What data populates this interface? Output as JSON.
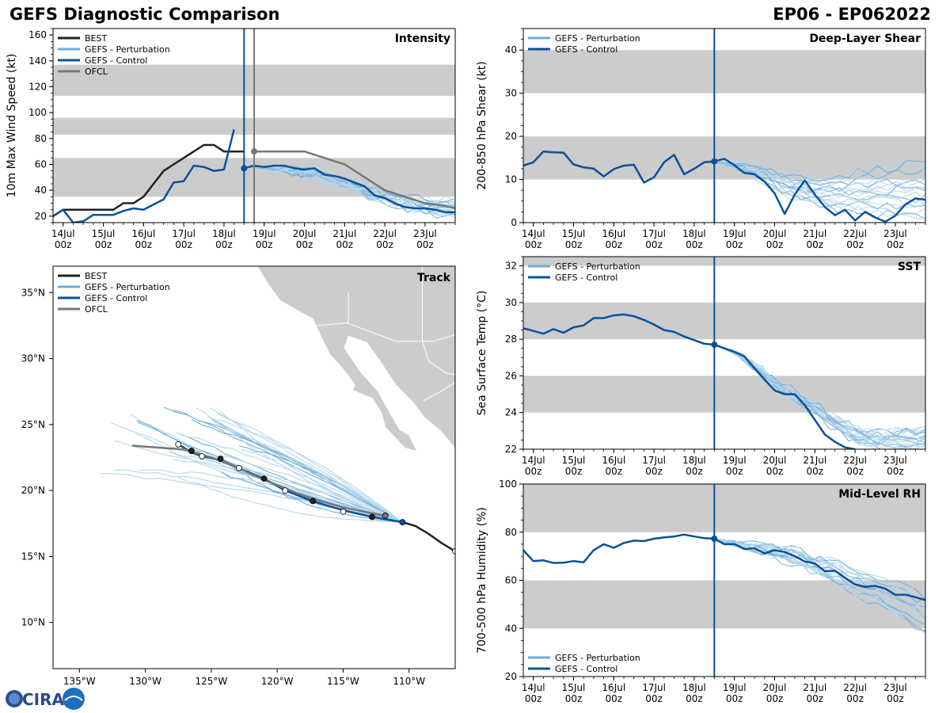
{
  "header": {
    "title": "GEFS Diagnostic Comparison",
    "storm": "EP06 - EP062022"
  },
  "colors": {
    "best": "#222222",
    "perturbation": "#6baed6",
    "perturbation_faint": "#b7d5ea",
    "control": "#08519c",
    "ofcl": "#777777",
    "band": "#cccccc",
    "land": "#cccccc"
  },
  "logo": {
    "text": "CIRA"
  },
  "time_axis": {
    "min": 13.75,
    "max": 23.75,
    "ticks": [
      {
        "v": 14,
        "day": "14Jul",
        "hour": "00z"
      },
      {
        "v": 15,
        "day": "15Jul",
        "hour": "00z"
      },
      {
        "v": 16,
        "day": "16Jul",
        "hour": "00z"
      },
      {
        "v": 17,
        "day": "17Jul",
        "hour": "00z"
      },
      {
        "v": 18,
        "day": "18Jul",
        "hour": "00z"
      },
      {
        "v": 19,
        "day": "19Jul",
        "hour": "00z"
      },
      {
        "v": 20,
        "day": "20Jul",
        "hour": "00z"
      },
      {
        "v": 21,
        "day": "21Jul",
        "hour": "00z"
      },
      {
        "v": 22,
        "day": "22Jul",
        "hour": "00z"
      },
      {
        "v": 23,
        "day": "23Jul",
        "hour": "00z"
      }
    ]
  },
  "chart_data": [
    {
      "id": "intensity",
      "type": "line",
      "title": "Intensity",
      "ylabel": "10m Max Wind Speed (kt)",
      "ylim": [
        15,
        165
      ],
      "yticks": [
        20,
        40,
        60,
        80,
        100,
        120,
        140,
        160
      ],
      "bands": [
        [
          35,
          65
        ],
        [
          83,
          96
        ],
        [
          113,
          137
        ]
      ],
      "vlines": [
        {
          "x": 18.5,
          "color": "control"
        },
        {
          "x": 18.75,
          "color": "ofcl"
        }
      ],
      "legend": [
        "BEST",
        "GEFS - Perturbation",
        "GEFS - Control",
        "OFCL"
      ],
      "series": [
        {
          "name": "BEST",
          "role": "best",
          "x": [
            13.75,
            14.0,
            14.25,
            14.5,
            14.75,
            15.0,
            15.25,
            15.5,
            15.75,
            16.0,
            16.25,
            16.5,
            16.75,
            17.0,
            17.25,
            17.5,
            17.75,
            18.0,
            18.25,
            18.5
          ],
          "y": [
            20,
            25,
            25,
            25,
            25,
            25,
            25,
            30,
            30,
            35,
            45,
            55,
            60,
            65,
            70,
            75,
            75,
            70,
            70,
            70
          ]
        },
        {
          "name": "GEFS - Control",
          "role": "control",
          "x": [
            13.75,
            14.0,
            14.25,
            14.5,
            14.75,
            15.0,
            15.25,
            15.5,
            15.75,
            16.0,
            16.25,
            16.5,
            16.75,
            17.0,
            17.25,
            17.5,
            17.75,
            18.0,
            18.25
          ],
          "y": [
            20,
            25,
            15,
            16,
            21,
            21,
            21,
            24,
            26,
            25,
            29,
            33,
            46,
            47,
            59,
            58,
            55,
            56,
            87
          ]
        },
        {
          "name": "GEFS - Control",
          "role": "control",
          "x": [
            18.5,
            18.75,
            19.0,
            19.25,
            19.5,
            19.75,
            20.0,
            20.25,
            20.5,
            20.75,
            21.0,
            21.25,
            21.5,
            21.75,
            22.0,
            22.25,
            22.5,
            22.75,
            23.0,
            23.25,
            23.5,
            23.75
          ],
          "y": [
            57,
            59,
            58,
            59,
            59,
            57,
            56,
            57,
            52,
            51,
            49,
            46,
            43,
            36,
            34,
            30,
            27,
            26,
            26,
            25,
            23,
            23
          ]
        },
        {
          "name": "OFCL",
          "role": "ofcl",
          "x": [
            18.75,
            19.0,
            19.5,
            20.0,
            20.5,
            21.0,
            21.5,
            22.0,
            22.5,
            23.0,
            23.5,
            23.75
          ],
          "y": [
            70,
            70,
            70,
            70,
            65,
            60,
            50,
            40,
            35,
            30,
            28,
            26
          ]
        }
      ],
      "ensemble": {
        "x0": 18.5,
        "x1": 23.75,
        "start": 58,
        "end_low": 20,
        "end_high": 32,
        "center": [
          58,
          57,
          55,
          52,
          47,
          40,
          34,
          29,
          26,
          25
        ],
        "members": 20
      },
      "markers": [
        {
          "x": 18.5,
          "y": 57,
          "role": "control"
        },
        {
          "x": 18.75,
          "y": 70,
          "role": "ofcl"
        }
      ]
    },
    {
      "id": "shear",
      "type": "line",
      "title": "Deep-Layer Shear",
      "ylabel": "200-850 hPa Shear (kt)",
      "ylim": [
        0,
        45
      ],
      "yticks": [
        0,
        10,
        20,
        30,
        40
      ],
      "bands": [
        [
          10,
          20
        ],
        [
          30,
          40
        ]
      ],
      "vlines": [
        {
          "x": 18.5,
          "color": "control"
        }
      ],
      "legend": [
        "GEFS - Perturbation",
        "GEFS - Control"
      ],
      "series": [
        {
          "name": "GEFS - Control",
          "role": "control",
          "x": [
            13.75,
            14.0,
            14.25,
            14.5,
            14.75,
            15.0,
            15.25,
            15.5,
            15.75,
            16.0,
            16.25,
            16.5,
            16.75,
            17.0,
            17.25,
            17.5,
            17.75,
            18.0,
            18.25,
            18.5,
            18.75,
            19.0,
            19.25,
            19.5,
            19.75,
            20.0,
            20.25,
            20.5,
            20.75,
            21.0,
            21.25,
            21.5,
            21.75,
            22.0,
            22.25,
            22.5,
            22.75,
            23.0,
            23.25,
            23.5,
            23.75
          ],
          "y": [
            13.2,
            14.0,
            16.5,
            16.3,
            16.2,
            13.5,
            12.8,
            12.5,
            10.7,
            12.4,
            13.2,
            13.4,
            9.3,
            10.5,
            14.0,
            15.7,
            11.2,
            12.5,
            14.0,
            14.2,
            14.8,
            13.3,
            11.5,
            11.2,
            9.5,
            6.8,
            2.0,
            6.5,
            9.8,
            6.5,
            3.6,
            1.7,
            3.0,
            0.5,
            2.5,
            1.2,
            0.2,
            1.6,
            4.2,
            5.6,
            5.3
          ]
        }
      ],
      "ensemble": {
        "x0": 18.5,
        "x1": 23.75,
        "start": 14,
        "end_low": 1,
        "end_high": 15,
        "center": [
          14,
          13,
          11,
          8,
          7,
          6,
          6,
          6,
          6,
          6
        ],
        "members": 20
      },
      "markers": [
        {
          "x": 18.5,
          "y": 14.2,
          "role": "control"
        }
      ]
    },
    {
      "id": "sst",
      "type": "line",
      "title": "SST",
      "ylabel": "Sea Surface Temp (°C)",
      "ylim": [
        22,
        32.5
      ],
      "yticks": [
        22,
        24,
        26,
        28,
        30,
        32
      ],
      "bands": [
        [
          24,
          26
        ],
        [
          28,
          30
        ],
        [
          32,
          32.5
        ]
      ],
      "vlines": [
        {
          "x": 18.5,
          "color": "control"
        }
      ],
      "legend": [
        "GEFS - Perturbation",
        "GEFS - Control"
      ],
      "series": [
        {
          "name": "GEFS - Control",
          "role": "control",
          "x": [
            13.75,
            14.0,
            14.25,
            14.5,
            14.75,
            15.0,
            15.25,
            15.5,
            15.75,
            16.0,
            16.25,
            16.5,
            16.75,
            17.0,
            17.25,
            17.5,
            17.75,
            18.0,
            18.25,
            18.5,
            18.75,
            19.0,
            19.25,
            19.5,
            19.75,
            20.0,
            20.25,
            20.5,
            20.75,
            21.0,
            21.25,
            21.5,
            21.75,
            22.0
          ],
          "y": [
            28.6,
            28.45,
            28.3,
            28.55,
            28.35,
            28.65,
            28.75,
            29.15,
            29.15,
            29.3,
            29.35,
            29.25,
            29.05,
            28.8,
            28.5,
            28.4,
            28.15,
            27.95,
            27.75,
            27.7,
            27.5,
            27.3,
            27.05,
            26.4,
            25.8,
            25.2,
            25.0,
            25.0,
            24.4,
            23.6,
            22.8,
            22.4,
            22.1,
            22.0
          ]
        }
      ],
      "ensemble": {
        "x0": 18.5,
        "x1": 23.75,
        "start": 27.7,
        "end_low": 22,
        "end_high": 23.2,
        "center": [
          27.7,
          27.2,
          26.2,
          25.2,
          24.5,
          23.5,
          22.7,
          22.4,
          22.4,
          22.5
        ],
        "members": 20
      },
      "markers": [
        {
          "x": 18.5,
          "y": 27.7,
          "role": "control"
        }
      ]
    },
    {
      "id": "rh",
      "type": "line",
      "title": "Mid-Level RH",
      "ylabel": "700-500 hPa Humidity (%)",
      "ylim": [
        20,
        100
      ],
      "yticks": [
        20,
        40,
        60,
        80,
        100
      ],
      "bands": [
        [
          40,
          60
        ],
        [
          80,
          100
        ]
      ],
      "vlines": [
        {
          "x": 18.5,
          "color": "control"
        }
      ],
      "legend": [
        "GEFS - Perturbation",
        "GEFS - Control"
      ],
      "series": [
        {
          "name": "GEFS - Control",
          "role": "control",
          "x": [
            13.75,
            14.0,
            14.25,
            14.5,
            14.75,
            15.0,
            15.25,
            15.5,
            15.75,
            16.0,
            16.25,
            16.5,
            16.75,
            17.0,
            17.25,
            17.5,
            17.75,
            18.0,
            18.25,
            18.5,
            18.75,
            19.0,
            19.25,
            19.5,
            19.75,
            20.0,
            20.25,
            20.5,
            20.75,
            21.0,
            21.25,
            21.5,
            21.75,
            22.0,
            22.25,
            22.5,
            22.75,
            23.0,
            23.25,
            23.5,
            23.75
          ],
          "y": [
            72.5,
            68.0,
            68.3,
            67.2,
            67.3,
            68.0,
            67.5,
            72.5,
            75.0,
            73.5,
            75.5,
            76.5,
            76.3,
            77.3,
            77.8,
            78.2,
            79.0,
            78.2,
            77.5,
            77.3,
            75.0,
            75.0,
            73.0,
            73.3,
            71.2,
            72.5,
            71.8,
            70.0,
            67.8,
            67.0,
            63.8,
            64.0,
            61.0,
            58.3,
            57.3,
            57.7,
            56.5,
            54.0,
            54.0,
            53.0,
            51.8
          ]
        }
      ],
      "ensemble": {
        "x0": 18.5,
        "x1": 23.75,
        "start": 77,
        "end_low": 38,
        "end_high": 54,
        "center": [
          77,
          75,
          73,
          71,
          68,
          64,
          59,
          55,
          51,
          46
        ],
        "members": 20
      },
      "markers": [
        {
          "x": 18.5,
          "y": 77.3,
          "role": "control"
        }
      ]
    },
    {
      "id": "track",
      "type": "line",
      "title": "Track",
      "xlim": [
        -137,
        -106.5
      ],
      "ylim": [
        6.5,
        37
      ],
      "xticks": [
        {
          "v": -135,
          "label": "135°W"
        },
        {
          "v": -130,
          "label": "130°W"
        },
        {
          "v": -125,
          "label": "125°W"
        },
        {
          "v": -120,
          "label": "120°W"
        },
        {
          "v": -115,
          "label": "115°W"
        },
        {
          "v": -110,
          "label": "110°W"
        }
      ],
      "yticks": [
        {
          "v": 10,
          "label": "10°N"
        },
        {
          "v": 15,
          "label": "15°N"
        },
        {
          "v": 20,
          "label": "20°N"
        },
        {
          "v": 25,
          "label": "25°N"
        },
        {
          "v": 30,
          "label": "30°N"
        },
        {
          "v": 35,
          "label": "35°N"
        }
      ],
      "legend": [
        "BEST",
        "GEFS - Perturbation",
        "GEFS - Control",
        "OFCL"
      ],
      "series": [
        {
          "name": "BEST",
          "role": "best",
          "lon": [
            -106.5,
            -107.5,
            -108.5,
            -109.5,
            -110.5
          ],
          "lat": [
            15.4,
            16.0,
            16.7,
            17.3,
            17.6
          ]
        },
        {
          "name": "GEFS - Control",
          "role": "control",
          "lon": [
            -110.5,
            -112.8,
            -115.0,
            -117.3,
            -119.4,
            -121.0,
            -122.9,
            -124.3,
            -125.7,
            -126.5,
            -127.5
          ],
          "lat": [
            17.6,
            18.0,
            18.5,
            19.2,
            20.0,
            20.9,
            21.7,
            22.3,
            22.6,
            22.9,
            23.5
          ]
        },
        {
          "name": "OFCL",
          "role": "ofcl",
          "lon": [
            -111.8,
            -115.0,
            -118.0,
            -121.0,
            -124.0,
            -127.0,
            -131.0
          ],
          "lat": [
            18.1,
            18.7,
            19.6,
            20.8,
            22.2,
            23.1,
            23.4
          ]
        }
      ],
      "track_markers": [
        {
          "lon": -106.5,
          "lat": 15.4,
          "role": "best",
          "fill": "white"
        },
        {
          "lon": -110.5,
          "lat": 17.6,
          "role": "control",
          "fill": "solid"
        },
        {
          "lon": -112.8,
          "lat": 18.0,
          "role": "control",
          "fill": "dark"
        },
        {
          "lon": -115.0,
          "lat": 18.4,
          "role": "control",
          "fill": "white"
        },
        {
          "lon": -117.3,
          "lat": 19.2,
          "role": "control",
          "fill": "dark"
        },
        {
          "lon": -119.4,
          "lat": 20.0,
          "role": "control",
          "fill": "white"
        },
        {
          "lon": -121.0,
          "lat": 20.9,
          "role": "control",
          "fill": "dark"
        },
        {
          "lon": -122.9,
          "lat": 21.7,
          "role": "control",
          "fill": "white"
        },
        {
          "lon": -124.3,
          "lat": 22.4,
          "role": "control",
          "fill": "dark"
        },
        {
          "lon": -125.7,
          "lat": 22.6,
          "role": "control",
          "fill": "white"
        },
        {
          "lon": -126.5,
          "lat": 23.0,
          "role": "control",
          "fill": "dark"
        },
        {
          "lon": -127.5,
          "lat": 23.5,
          "role": "control",
          "fill": "white"
        },
        {
          "lon": -111.8,
          "lat": 18.1,
          "role": "ofcl",
          "fill": "solid"
        }
      ],
      "ensemble": {
        "start_lon": -110.5,
        "start_lat": 17.6,
        "members": 30,
        "end_lon_min": -133.5,
        "end_lon_max": -122.5,
        "end_lat_min": 21.0,
        "end_lat_max": 26.3
      }
    }
  ]
}
